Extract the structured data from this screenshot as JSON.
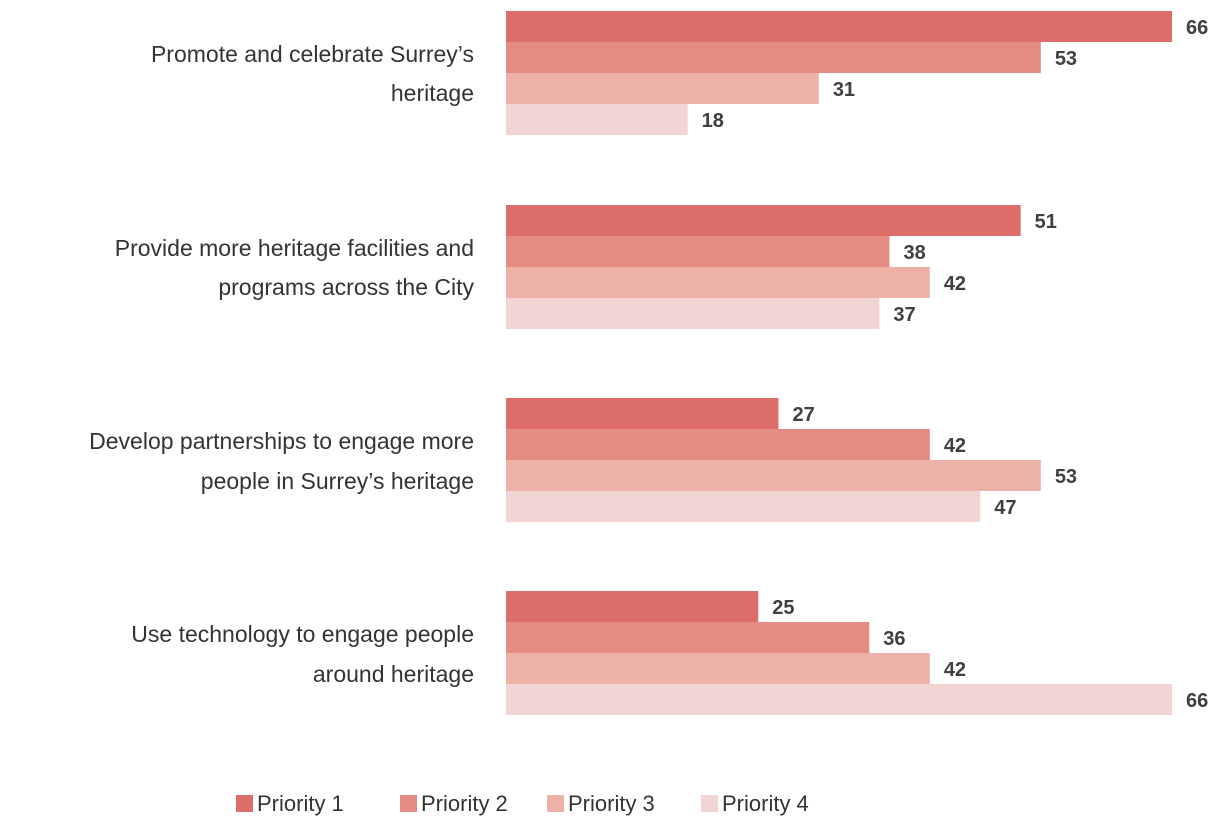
{
  "chart_data": {
    "type": "bar",
    "orientation": "horizontal",
    "categories": [
      [
        "Promote and celebrate Surrey’s",
        "heritage"
      ],
      [
        "Provide more heritage facilities and",
        "programs across the City"
      ],
      [
        "Develop partnerships to engage more",
        "people in Surrey’s heritage"
      ],
      [
        "Use technology to engage people",
        "around heritage"
      ]
    ],
    "series": [
      {
        "name": "Priority 1",
        "color": "#dc6d69",
        "values": [
          66,
          51,
          27,
          25
        ]
      },
      {
        "name": "Priority 2",
        "color": "#e48c81",
        "values": [
          53,
          38,
          42,
          36
        ]
      },
      {
        "name": "Priority 3",
        "color": "#edb1a7",
        "values": [
          31,
          42,
          53,
          42
        ]
      },
      {
        "name": "Priority 4",
        "color": "#f2d5d2",
        "values": [
          18,
          37,
          47,
          66
        ]
      }
    ],
    "xlim": [
      0,
      66
    ],
    "grid": false,
    "legend_position": "bottom",
    "data_labels": true
  }
}
